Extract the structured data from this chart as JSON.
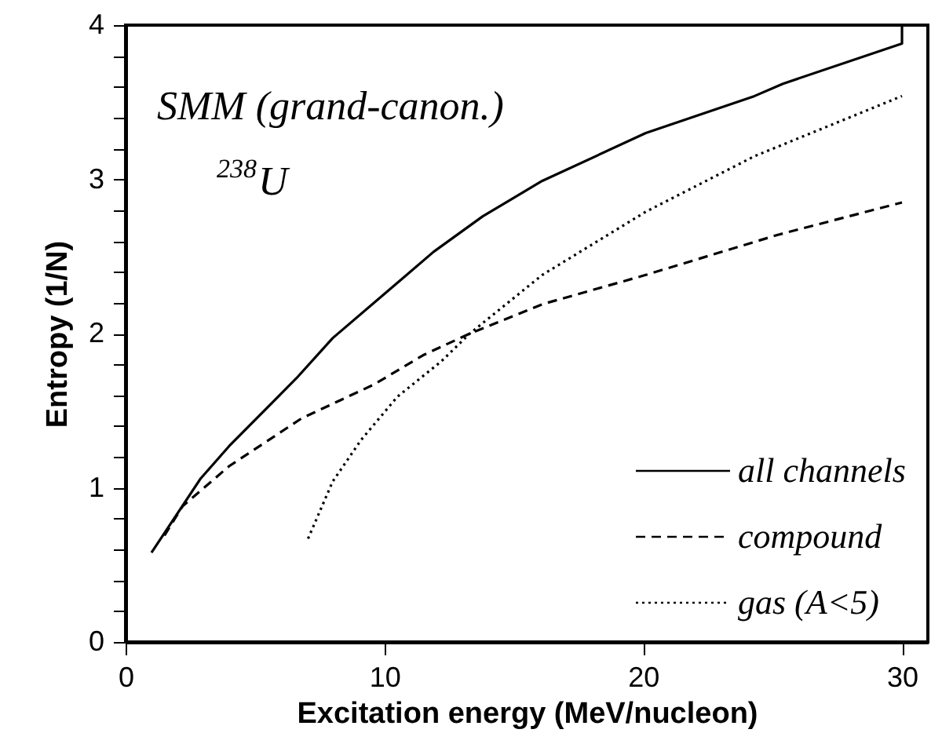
{
  "chart_data": {
    "type": "line",
    "xlabel": "Excitation energy (MeV/nucleon)",
    "ylabel": "Entropy (1/N)",
    "annotations": [
      "SMM (grand-canon.)",
      "$^{238}$U"
    ],
    "xlim": [
      0,
      31
    ],
    "xticks": [
      0,
      10,
      20,
      30
    ],
    "ylim": [
      0,
      4
    ],
    "yticks": [
      0,
      {
        "value": 0.2,
        "label": null
      },
      {
        "value": 0.4,
        "label": null
      },
      {
        "value": 0.6,
        "label": null
      },
      {
        "value": 0.8,
        "label": null
      },
      1,
      {
        "value": 1.2,
        "label": null
      },
      {
        "value": 1.4,
        "label": null
      },
      {
        "value": 1.6,
        "label": null
      },
      {
        "value": 1.8,
        "label": null
      },
      2,
      {
        "value": 2.2,
        "label": null
      },
      {
        "value": 2.4,
        "label": null
      },
      {
        "value": 2.6,
        "label": null
      },
      {
        "value": 2.8,
        "label": null
      },
      3,
      {
        "value": 3.2,
        "label": null
      },
      {
        "value": 3.4,
        "label": null
      },
      {
        "value": 3.6,
        "label": null
      },
      {
        "value": 3.8,
        "label": null
      },
      4
    ],
    "grid": false,
    "legend": "bottom right",
    "series": [
      {
        "name": "all channels",
        "color": "#000000",
        "line_style": "solid",
        "x": [
          1.0,
          2.9,
          4.0,
          6.6,
          8.0,
          11.9,
          13.8,
          16.1,
          20.1,
          24.3,
          25.4,
          30,
          30
        ],
        "values": [
          0.58,
          1.06,
          1.27,
          1.71,
          1.97,
          2.53,
          2.76,
          2.99,
          3.3,
          3.54,
          3.62,
          3.88,
          4
        ]
      },
      {
        "name": "compound",
        "color": "#000000",
        "line_style": "dashed",
        "x": [
          1.5,
          2.2,
          4.0,
          6.8,
          9.6,
          11.5,
          13.3,
          16.1,
          20.1,
          25.2,
          30
        ],
        "values": [
          0.69,
          0.88,
          1.14,
          1.45,
          1.67,
          1.86,
          2.0,
          2.19,
          2.38,
          2.64,
          2.85
        ]
      },
      {
        "name": "gas (A<5)",
        "color": "#000000",
        "line_style": "dotted",
        "x": [
          7.05,
          8.0,
          9.1,
          10.5,
          12.2,
          13.3,
          16.1,
          20.1,
          24.3,
          30
        ],
        "values": [
          0.67,
          1.04,
          1.31,
          1.59,
          1.82,
          2.0,
          2.38,
          2.79,
          3.15,
          3.54
        ]
      }
    ]
  }
}
